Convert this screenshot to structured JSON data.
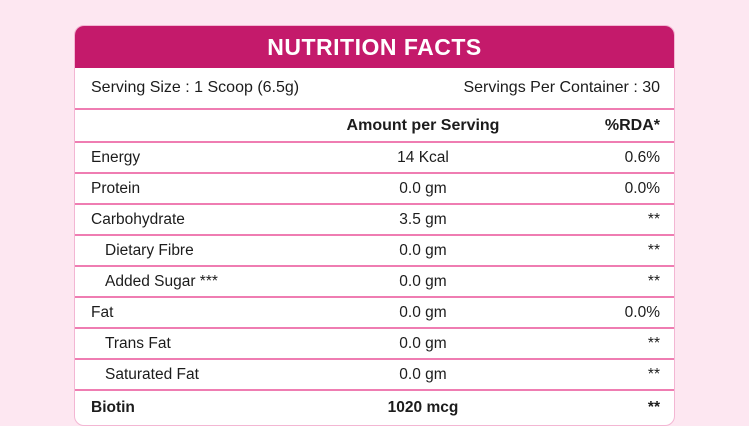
{
  "label": {
    "title": "NUTRITION FACTS",
    "serving_size": "Serving Size : 1 Scoop (6.5g)",
    "servings_per_container": "Servings Per Container : 30",
    "columns": {
      "amount": "Amount per Serving",
      "rda": "%RDA*"
    },
    "rows": [
      {
        "name": "Energy",
        "amount": "14 Kcal",
        "rda": "0.6%"
      },
      {
        "name": "Protein",
        "amount": "0.0 gm",
        "rda": "0.0%"
      },
      {
        "name": "Carbohydrate",
        "amount": "3.5 gm",
        "rda": "**"
      },
      {
        "name": "Dietary Fibre",
        "amount": "0.0 gm",
        "rda": "**"
      },
      {
        "name": "Added Sugar ***",
        "amount": "0.0 gm",
        "rda": "**"
      },
      {
        "name": "Fat",
        "amount": "0.0 gm",
        "rda": "0.0%"
      },
      {
        "name": "Trans Fat",
        "amount": "0.0 gm",
        "rda": "**"
      },
      {
        "name": "Saturated Fat",
        "amount": "0.0 gm",
        "rda": "**"
      },
      {
        "name": "Biotin",
        "amount": "1020 mcg",
        "rda": "**"
      }
    ],
    "colors": {
      "header_background": "#c41a6b",
      "divider": "#ef7db2",
      "page_background": "#fde7f1",
      "card_background": "#ffffff"
    }
  }
}
